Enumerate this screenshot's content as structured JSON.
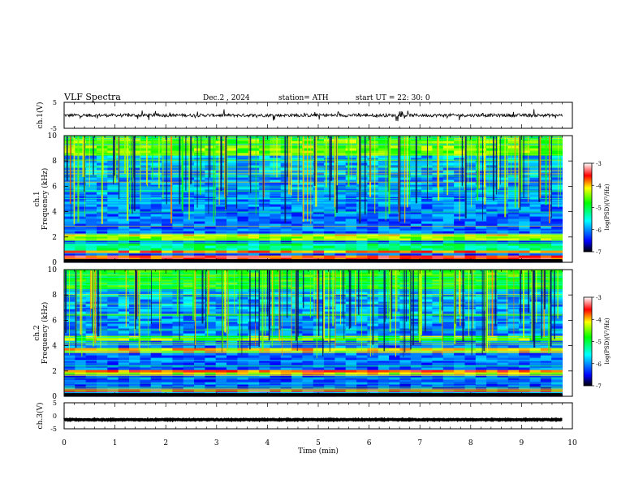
{
  "header": {
    "title": "VLF  Spectra",
    "date": "Dec.2  , 2024",
    "station": "station= ATH",
    "start": "start  UT  =   22: 30: 0"
  },
  "colors": {
    "colormap": [
      "#000000",
      "#0000ff",
      "#00ffff",
      "#00ff00",
      "#ffff00",
      "#ff0000",
      "#ffffff"
    ],
    "waveform": "#000000"
  },
  "chart_data": [
    {
      "type": "line",
      "name": "ch1-waveform",
      "ylabel": "ch.1(V)",
      "ylim": [
        -5,
        5
      ],
      "yticks": [
        "5",
        "-5"
      ],
      "xlim": [
        0,
        10
      ],
      "baseline": 0,
      "noise_amplitude": 0.6
    },
    {
      "type": "heatmap",
      "name": "ch1-spectrogram",
      "ylabel": "Frequency  (kHz)",
      "ylabel2": "ch.1",
      "ylim": [
        0,
        10
      ],
      "yticks": [
        "0",
        "2",
        "4",
        "6",
        "8",
        "10"
      ],
      "xlim": [
        0,
        10
      ],
      "bands_khz": [
        {
          "f": [
            0.2,
            0.5
          ],
          "level": 0.85
        },
        {
          "f": [
            0.7,
            0.9
          ],
          "level": 0.8
        },
        {
          "f": [
            1.0,
            1.5
          ],
          "level": 0.45
        },
        {
          "f": [
            1.8,
            2.1
          ],
          "level": 0.65
        },
        {
          "f": [
            2.1,
            2.4
          ],
          "level": 0.7
        },
        {
          "f": [
            3.8,
            4.2
          ],
          "level": 0.2
        },
        {
          "f": [
            8.5,
            10.0
          ],
          "level": 0.62
        }
      ],
      "colorbar": {
        "label": "log(PSD)(V²/Hz)",
        "ticks": [
          "-3",
          "-4",
          "-5",
          "-6",
          "-7"
        ],
        "range": [
          -7,
          -3
        ]
      }
    },
    {
      "type": "heatmap",
      "name": "ch2-spectrogram",
      "ylabel": "Frequency  (kHz)",
      "ylabel2": "ch.2",
      "ylim": [
        0,
        10
      ],
      "yticks": [
        "0",
        "2",
        "4",
        "6",
        "8",
        "10"
      ],
      "xlim": [
        0,
        10
      ],
      "bands_khz": [
        {
          "f": [
            0.3,
            0.6
          ],
          "level": 0.85
        },
        {
          "f": [
            1.7,
            1.9
          ],
          "level": 0.7
        },
        {
          "f": [
            1.9,
            2.2
          ],
          "level": 0.82
        },
        {
          "f": [
            3.5,
            3.8
          ],
          "level": 0.72
        },
        {
          "f": [
            4.5,
            4.8
          ],
          "level": 0.62
        },
        {
          "f": [
            8.5,
            10.0
          ],
          "level": 0.55
        }
      ],
      "colorbar": {
        "label": "log(PSD)(V²/Hz)",
        "ticks": [
          "-3",
          "-4",
          "-5",
          "-6",
          "-7"
        ],
        "range": [
          -7,
          -3
        ]
      }
    },
    {
      "type": "line",
      "name": "ch3-waveform",
      "ylabel": "ch.3(V)",
      "ylim": [
        -5,
        5
      ],
      "yticks": [
        "5",
        "0",
        "-5"
      ],
      "xlim": [
        0,
        10
      ],
      "baseline": -1.5,
      "noise_amplitude": 0.15
    }
  ],
  "xaxis": {
    "label": "Time  (min)",
    "ticks": [
      "0",
      "1",
      "2",
      "3",
      "4",
      "5",
      "6",
      "7",
      "8",
      "9",
      "10"
    ],
    "data_end_min": 9.8
  }
}
